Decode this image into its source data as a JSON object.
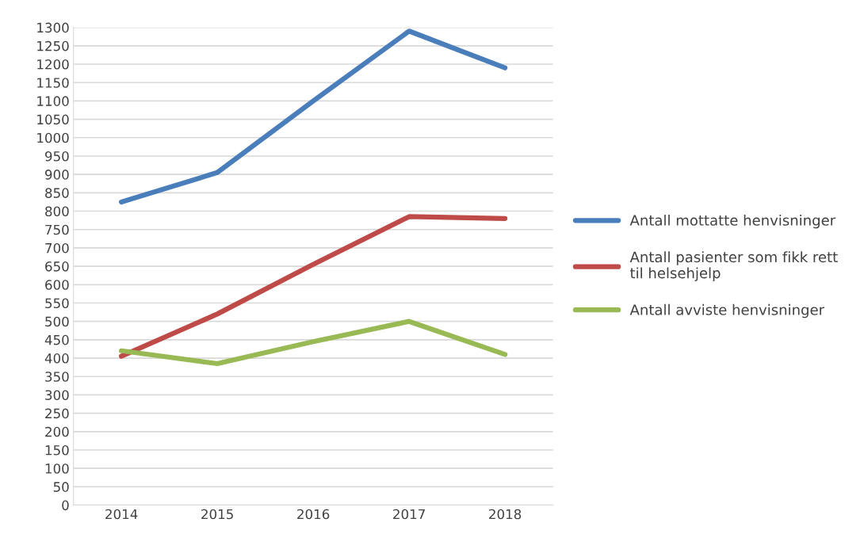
{
  "chart_data": {
    "type": "line",
    "categories": [
      "2014",
      "2015",
      "2016",
      "2017",
      "2018"
    ],
    "series": [
      {
        "name": "Antall mottatte henvisninger",
        "color": "#4a7ebb",
        "values": [
          825,
          905,
          1100,
          1290,
          1190
        ]
      },
      {
        "name": "Antall pasienter som fikk rett til helsehjelp",
        "color": "#be4b48",
        "values": [
          405,
          520,
          655,
          785,
          780
        ]
      },
      {
        "name": "Antall avviste henvisninger",
        "color": "#98b954",
        "values": [
          420,
          385,
          445,
          500,
          410
        ]
      }
    ],
    "ylim": [
      0,
      1300
    ],
    "yticks": [
      0,
      50,
      100,
      150,
      200,
      250,
      300,
      350,
      400,
      450,
      500,
      550,
      600,
      650,
      700,
      750,
      800,
      850,
      900,
      950,
      1000,
      1050,
      1100,
      1150,
      1200,
      1250,
      1300
    ],
    "grid": "y",
    "legend": "right",
    "marker": "none",
    "line_style": "solid"
  }
}
